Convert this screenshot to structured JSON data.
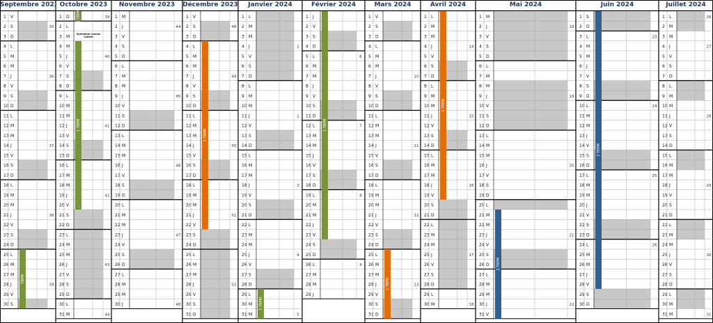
{
  "page_title": "",
  "months": [
    {
      "title": "Septembre 2023",
      "days": [
        "V",
        "S",
        "D",
        "L",
        "M",
        "M",
        "J",
        "V",
        "S",
        "D",
        "L",
        "M",
        "M",
        "J",
        "V",
        "S",
        "D",
        "L",
        "M",
        "M",
        "J",
        "V",
        "S",
        "D",
        "L",
        "M",
        "M",
        "J",
        "V",
        "S"
      ],
      "weeks": [
        {
          "day": 2,
          "label": "35"
        },
        {
          "day": 7,
          "label": "36"
        },
        {
          "day": 14,
          "label": "37"
        },
        {
          "day": 21,
          "label": "38"
        },
        {
          "day": 28,
          "label": "39"
        }
      ],
      "shaded": [
        [
          2,
          3
        ],
        [
          9,
          10
        ],
        [
          16,
          17
        ],
        [
          23,
          24
        ],
        [
          30,
          30
        ]
      ],
      "bars": [
        {
          "from": 25,
          "to": 30,
          "label": "TRPM",
          "color": "green"
        }
      ],
      "notes": [],
      "start_offset": 0
    },
    {
      "title": "Octobre 2023",
      "days": [
        "D",
        "L",
        "M",
        "M",
        "J",
        "V",
        "S",
        "D",
        "L",
        "M",
        "M",
        "J",
        "V",
        "S",
        "D",
        "L",
        "M",
        "M",
        "J",
        "V",
        "S",
        "D",
        "L",
        "M",
        "M",
        "J",
        "V",
        "S",
        "D",
        "L",
        "M"
      ],
      "weeks": [
        {
          "day": 1,
          "label": "39"
        },
        {
          "day": 5,
          "label": "40"
        },
        {
          "day": 12,
          "label": "41"
        },
        {
          "day": 19,
          "label": "42"
        },
        {
          "day": 26,
          "label": "43"
        },
        {
          "day": 31,
          "label": "44"
        }
      ],
      "shaded": [
        [
          7,
          8
        ],
        [
          14,
          15
        ],
        [
          21,
          29
        ]
      ],
      "bars": [
        {
          "from": 1,
          "to": 1,
          "label": "1 TRPM",
          "color": "olive"
        },
        {
          "from": 4,
          "to": 20,
          "label": "1 TRPM",
          "color": "green"
        }
      ],
      "notes": [
        {
          "day": 3,
          "text": "Splendeur jeunes Lutads"
        }
      ],
      "start_offset": 0
    },
    {
      "title": "Novembre 2023",
      "days": [
        "M",
        "J",
        "V",
        "S",
        "D",
        "L",
        "M",
        "M",
        "J",
        "V",
        "S",
        "D",
        "L",
        "M",
        "M",
        "J",
        "V",
        "S",
        "D",
        "L",
        "M",
        "M",
        "J",
        "V",
        "S",
        "D",
        "L",
        "M",
        "M",
        "J"
      ],
      "weeks": [
        {
          "day": 2,
          "label": "44"
        },
        {
          "day": 9,
          "label": "45"
        },
        {
          "day": 16,
          "label": "46"
        },
        {
          "day": 23,
          "label": "47"
        },
        {
          "day": 30,
          "label": "48"
        }
      ],
      "shaded": [
        [
          11,
          12
        ],
        [
          18,
          19
        ],
        [
          25,
          26
        ]
      ],
      "bars": [],
      "notes": [],
      "start_offset": 0
    },
    {
      "title": "Décembre 2023",
      "days": [
        "V",
        "S",
        "D",
        "L",
        "M",
        "M",
        "J",
        "V",
        "S",
        "D",
        "L",
        "M",
        "M",
        "J",
        "V",
        "S",
        "D",
        "L",
        "M",
        "M",
        "J",
        "V",
        "S",
        "D",
        "L",
        "M",
        "M",
        "J",
        "V",
        "S",
        "D"
      ],
      "weeks": [
        {
          "day": 2,
          "label": "48"
        },
        {
          "day": 7,
          "label": "49"
        },
        {
          "day": 14,
          "label": "50"
        },
        {
          "day": 21,
          "label": "51"
        },
        {
          "day": 28,
          "label": "52"
        }
      ],
      "shaded": [
        [
          2,
          3
        ],
        [
          9,
          10
        ],
        [
          16,
          17
        ],
        [
          23,
          31
        ]
      ],
      "bars": [
        {
          "from": 4,
          "to": 22,
          "label": "1 TRPM",
          "color": "orange"
        }
      ],
      "notes": [],
      "start_offset": 0
    },
    {
      "title": "Janvier 2024",
      "days": [
        "L",
        "M",
        "M",
        "J",
        "V",
        "S",
        "D",
        "L",
        "M",
        "M",
        "J",
        "V",
        "S",
        "D",
        "L",
        "M",
        "M",
        "J",
        "V",
        "S",
        "D",
        "L",
        "M",
        "M",
        "J",
        "V",
        "S",
        "D",
        "L",
        "M",
        "M"
      ],
      "weeks": [
        {
          "day": 4,
          "label": "1"
        },
        {
          "day": 11,
          "label": "2"
        },
        {
          "day": 18,
          "label": "3"
        },
        {
          "day": 25,
          "label": "4"
        },
        {
          "day": 31,
          "label": "5"
        }
      ],
      "shaded": [
        [
          1,
          7
        ],
        [
          13,
          14
        ],
        [
          20,
          21
        ],
        [
          27,
          28
        ]
      ],
      "bars": [
        {
          "from": 29,
          "to": 31,
          "label": "1 TRPM",
          "color": "green"
        }
      ],
      "notes": [],
      "start_offset": 0
    },
    {
      "title": "Février 2024",
      "days": [
        "J",
        "V",
        "S",
        "D",
        "L",
        "M",
        "M",
        "J",
        "V",
        "S",
        "D",
        "L",
        "M",
        "M",
        "J",
        "V",
        "S",
        "D",
        "L",
        "M",
        "M",
        "J",
        "V",
        "S",
        "D",
        "L",
        "M",
        "M",
        "J"
      ],
      "weeks": [
        {
          "day": 5,
          "label": "6"
        },
        {
          "day": 12,
          "label": "7"
        },
        {
          "day": 19,
          "label": "8"
        },
        {
          "day": 26,
          "label": "9"
        }
      ],
      "shaded": [
        [
          3,
          4
        ],
        [
          10,
          11
        ],
        [
          17,
          18
        ],
        [
          24,
          25
        ]
      ],
      "bars": [
        {
          "from": 1,
          "to": 23,
          "label": "1 TRPM",
          "color": "green"
        }
      ],
      "notes": [],
      "start_offset": 0
    },
    {
      "title": "Mars 2024",
      "days": [
        "V",
        "S",
        "D",
        "L",
        "M",
        "M",
        "J",
        "V",
        "S",
        "D",
        "L",
        "M",
        "M",
        "J",
        "V",
        "S",
        "D",
        "L",
        "M",
        "M",
        "J",
        "V",
        "S",
        "D",
        "L",
        "M",
        "M",
        "J",
        "V",
        "S",
        "D"
      ],
      "weeks": [
        {
          "day": 7,
          "label": "10"
        },
        {
          "day": 14,
          "label": "11"
        },
        {
          "day": 21,
          "label": "12"
        },
        {
          "day": 28,
          "label": "13"
        }
      ],
      "shaded": [
        [
          2,
          3
        ],
        [
          9,
          10
        ],
        [
          16,
          17
        ],
        [
          23,
          24
        ],
        [
          30,
          31
        ]
      ],
      "bars": [
        {
          "from": 25,
          "to": 31,
          "label": "1 TRPM",
          "color": "orange"
        }
      ],
      "notes": [],
      "start_offset": 0
    },
    {
      "title": "Avril 2024",
      "days": [
        "L",
        "M",
        "M",
        "J",
        "V",
        "S",
        "D",
        "L",
        "M",
        "M",
        "J",
        "V",
        "S",
        "D",
        "L",
        "M",
        "M",
        "J",
        "V",
        "S",
        "D",
        "L",
        "M",
        "M",
        "J",
        "V",
        "S",
        "D",
        "L",
        "M"
      ],
      "weeks": [
        {
          "day": 4,
          "label": "14"
        },
        {
          "day": 11,
          "label": "15"
        },
        {
          "day": 18,
          "label": "16"
        },
        {
          "day": 25,
          "label": "17"
        },
        {
          "day": 30,
          "label": "18"
        }
      ],
      "shaded": [
        [
          6,
          7
        ],
        [
          13,
          14
        ],
        [
          20,
          28
        ]
      ],
      "bars": [
        {
          "from": 1,
          "to": 19,
          "label": "1 TRPM",
          "color": "orange"
        }
      ],
      "notes": [],
      "start_offset": 0
    },
    {
      "title": "Mai 2024",
      "days": [
        "M",
        "J",
        "V",
        "S",
        "D",
        "L",
        "M",
        "M",
        "J",
        "V",
        "S",
        "D",
        "L",
        "M",
        "M",
        "J",
        "V",
        "S",
        "D",
        "L",
        "M",
        "M",
        "J",
        "V",
        "S",
        "D",
        "L",
        "M",
        "M",
        "J",
        "V"
      ],
      "weeks": [
        {
          "day": 2,
          "label": "18"
        },
        {
          "day": 9,
          "label": "19"
        },
        {
          "day": 16,
          "label": "20"
        },
        {
          "day": 23,
          "label": "21"
        },
        {
          "day": 30,
          "label": "22"
        }
      ],
      "shaded": [
        [
          1,
          5
        ],
        [
          8,
          12
        ],
        [
          20,
          20
        ],
        [
          25,
          26
        ]
      ],
      "bars": [
        {
          "from": 21,
          "to": 31,
          "label": "2 TRPM",
          "color": "blue"
        }
      ],
      "notes": [],
      "start_offset": 0
    },
    {
      "title": "Juin 2024",
      "days": [
        "S",
        "D",
        "L",
        "M",
        "M",
        "J",
        "V",
        "S",
        "D",
        "L",
        "M",
        "M",
        "J",
        "V",
        "S",
        "D",
        "L",
        "M",
        "M",
        "J",
        "V",
        "S",
        "D",
        "L",
        "M",
        "M",
        "J",
        "V",
        "S",
        "D"
      ],
      "weeks": [
        {
          "day": 3,
          "label": "23"
        },
        {
          "day": 10,
          "label": "24"
        },
        {
          "day": 17,
          "label": "25"
        },
        {
          "day": 24,
          "label": "26"
        }
      ],
      "shaded": [
        [
          1,
          2
        ],
        [
          8,
          9
        ],
        [
          15,
          16
        ],
        [
          22,
          23
        ],
        [
          29,
          30
        ]
      ],
      "bars": [
        {
          "from": 1,
          "to": 28,
          "label": "2 TRPM",
          "color": "blue"
        }
      ],
      "notes": [],
      "start_offset": 0
    },
    {
      "title": "Juillet 2024",
      "days": [
        "L",
        "M",
        "M",
        "J",
        "V",
        "S",
        "D",
        "L",
        "M",
        "M",
        "J",
        "V",
        "S",
        "D",
        "L",
        "M",
        "M",
        "J",
        "V",
        "S",
        "D",
        "L",
        "M",
        "M",
        "J",
        "V",
        "S",
        "D",
        "L",
        "M",
        "M"
      ],
      "weeks": [
        {
          "day": 1,
          "label": "26"
        },
        {
          "day": 4,
          "label": "27"
        },
        {
          "day": 11,
          "label": "28"
        },
        {
          "day": 18,
          "label": "29"
        },
        {
          "day": 25,
          "label": "30"
        },
        {
          "day": 31,
          "label": "31"
        }
      ],
      "shaded": [
        [
          1,
          2
        ],
        [
          8,
          9
        ],
        [
          15,
          16
        ],
        [
          22,
          23
        ],
        [
          29,
          30
        ]
      ],
      "bars": [],
      "notes": [],
      "start_offset": 0
    }
  ],
  "colors": {
    "green": "#77933c",
    "olive": "#8a8a55",
    "orange": "#e36c0a",
    "blue": "#2e5f95",
    "shade": "#c8c8c8",
    "title": "#1f3864",
    "week": "#1f3864",
    "grid": "#000000",
    "thin": "#999999"
  }
}
